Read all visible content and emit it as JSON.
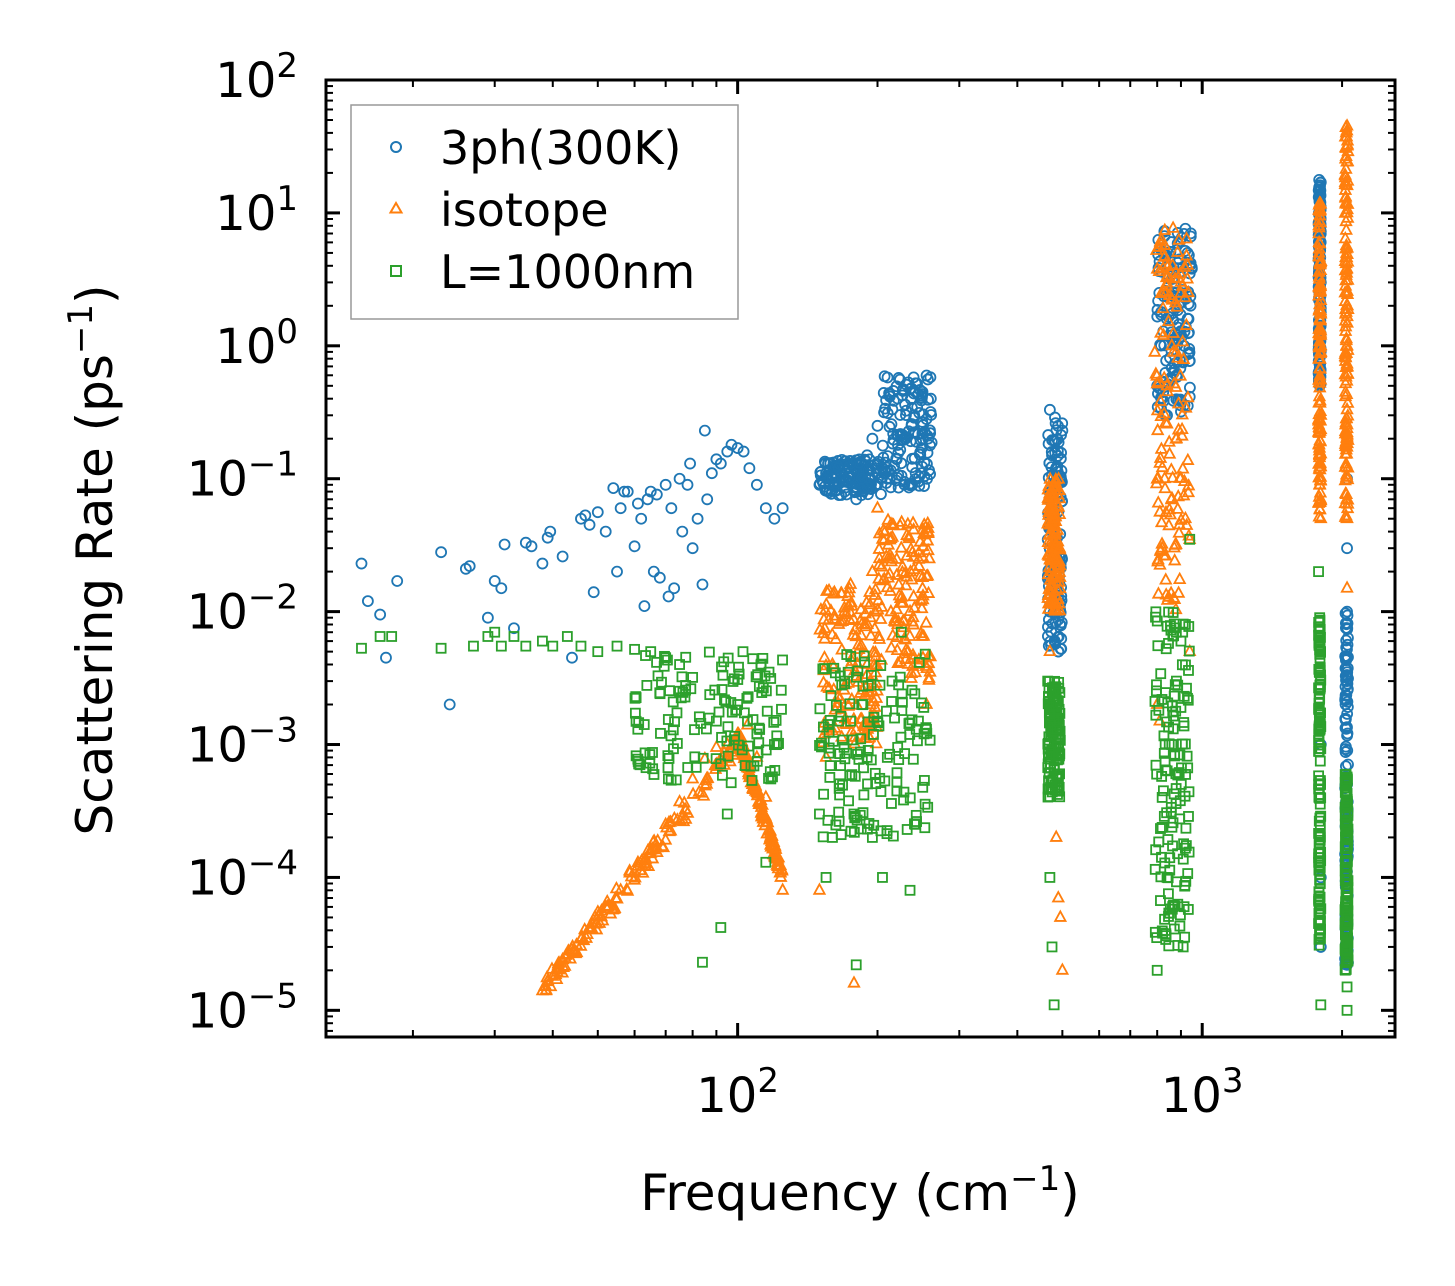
{
  "chart_data": {
    "type": "scatter",
    "xscale": "log",
    "yscale": "log",
    "xlabel": "Frequency (cm",
    "xlabel_sup": "−1",
    "xlabel_end": ")",
    "ylabel": "Scattering Rate (ps",
    "ylabel_sup": "−1",
    "ylabel_end": ")",
    "xlim": [
      13,
      2600
    ],
    "ylim": [
      6.3e-06,
      100
    ],
    "x_ticks": [
      {
        "value": 100,
        "base": "10",
        "exp": "2"
      },
      {
        "value": 1000,
        "base": "10",
        "exp": "3"
      }
    ],
    "y_ticks": [
      {
        "value": 1e-05,
        "base": "10",
        "exp": "−5"
      },
      {
        "value": 0.0001,
        "base": "10",
        "exp": "−4"
      },
      {
        "value": 0.001,
        "base": "10",
        "exp": "−3"
      },
      {
        "value": 0.01,
        "base": "10",
        "exp": "−2"
      },
      {
        "value": 0.1,
        "base": "10",
        "exp": "−1"
      },
      {
        "value": 1,
        "base": "10",
        "exp": "0"
      },
      {
        "value": 10,
        "base": "10",
        "exp": "1"
      },
      {
        "value": 100,
        "base": "10",
        "exp": "2"
      }
    ],
    "legend_position": "top-left",
    "series": [
      {
        "name": "3ph(300K)",
        "marker": "circle",
        "color": "#1f77b4",
        "points": [
          [
            15.5,
            0.023
          ],
          [
            16.0,
            0.012
          ],
          [
            17.0,
            0.0095
          ],
          [
            17.5,
            0.0045
          ],
          [
            18.5,
            0.017
          ],
          [
            23,
            0.028
          ],
          [
            24,
            0.002
          ],
          [
            26,
            0.021
          ],
          [
            26.5,
            0.022
          ],
          [
            29,
            0.009
          ],
          [
            30,
            0.017
          ],
          [
            31,
            0.015
          ],
          [
            31.5,
            0.032
          ],
          [
            33,
            0.0075
          ],
          [
            35,
            0.033
          ],
          [
            36,
            0.031
          ],
          [
            38,
            0.023
          ],
          [
            39,
            0.036
          ],
          [
            39.5,
            0.04
          ],
          [
            42,
            0.026
          ],
          [
            44,
            0.0045
          ],
          [
            46,
            0.05
          ],
          [
            47,
            0.053
          ],
          [
            48,
            0.045
          ],
          [
            49,
            0.014
          ],
          [
            50,
            0.056
          ],
          [
            52,
            0.04
          ],
          [
            54,
            0.085
          ],
          [
            55,
            0.02
          ],
          [
            56,
            0.06
          ],
          [
            57,
            0.08
          ],
          [
            58,
            0.08
          ],
          [
            60,
            0.031
          ],
          [
            61,
            0.065
          ],
          [
            62,
            0.05
          ],
          [
            63,
            0.011
          ],
          [
            64,
            0.07
          ],
          [
            65,
            0.08
          ],
          [
            66,
            0.02
          ],
          [
            67,
            0.076
          ],
          [
            68,
            0.018
          ],
          [
            70,
            0.09
          ],
          [
            71,
            0.013
          ],
          [
            72,
            0.06
          ],
          [
            73,
            0.015
          ],
          [
            75,
            0.1
          ],
          [
            76,
            0.04
          ],
          [
            78,
            0.09
          ],
          [
            79,
            0.13
          ],
          [
            80,
            0.03
          ],
          [
            82,
            0.05
          ],
          [
            84,
            0.016
          ],
          [
            85,
            0.23
          ],
          [
            86,
            0.07
          ],
          [
            88,
            0.11
          ],
          [
            90,
            0.14
          ],
          [
            92,
            0.13
          ],
          [
            95,
            0.16
          ],
          [
            97,
            0.18
          ],
          [
            100,
            0.17
          ],
          [
            103,
            0.16
          ],
          [
            106,
            0.12
          ],
          [
            110,
            0.09
          ],
          [
            115,
            0.06
          ],
          [
            120,
            0.05
          ],
          [
            125,
            0.06
          ],
          [
            150,
            0.09
          ],
          [
            155,
            0.11
          ],
          [
            160,
            0.1
          ],
          [
            165,
            0.12
          ],
          [
            170,
            0.08
          ],
          [
            175,
            0.13
          ],
          [
            180,
            0.07
          ],
          [
            185,
            0.1
          ],
          [
            190,
            0.15
          ],
          [
            195,
            0.2
          ],
          [
            200,
            0.25
          ],
          [
            205,
            0.12
          ],
          [
            210,
            0.1
          ],
          [
            220,
            0.14
          ],
          [
            230,
            0.2
          ],
          [
            240,
            0.3
          ],
          [
            250,
            0.45
          ],
          [
            260,
            0.58
          ],
          [
            470,
            0.33
          ],
          [
            470,
            0.01
          ],
          [
            475,
            0.15
          ],
          [
            480,
            0.05
          ],
          [
            485,
            0.02
          ],
          [
            490,
            0.005
          ],
          [
            495,
            0.1
          ],
          [
            500,
            0.23
          ],
          [
            800,
            0.5
          ],
          [
            820,
            0.4
          ],
          [
            840,
            0.3
          ],
          [
            860,
            1.2
          ],
          [
            880,
            0.6
          ],
          [
            900,
            2.5
          ],
          [
            920,
            7.6
          ],
          [
            930,
            5.0
          ],
          [
            940,
            3.5
          ],
          [
            950,
            3.8
          ],
          [
            1800,
            17
          ],
          [
            1800,
            3.0
          ],
          [
            1800,
            0.001
          ],
          [
            1800,
            0.0001
          ],
          [
            1800,
            3e-05
          ],
          [
            2050,
            0.1
          ],
          [
            2050,
            0.03
          ],
          [
            2050,
            0.01
          ],
          [
            2050,
            0.003
          ],
          [
            2050,
            0.0005
          ],
          [
            2050,
            0.0001
          ],
          [
            2050,
            3e-05
          ],
          [
            2050,
            2.2e-05
          ]
        ],
        "stripes": [
          {
            "x_min": 150,
            "x_max": 205,
            "y_min": 0.075,
            "y_max": 0.14
          },
          {
            "x_min": 205,
            "x_max": 262,
            "y_min": 0.085,
            "y_max": 0.6
          },
          {
            "x_min": 465,
            "x_max": 500,
            "y_min": 0.005,
            "y_max": 0.3
          },
          {
            "x_min": 800,
            "x_max": 950,
            "y_min": 0.3,
            "y_max": 8.0
          },
          {
            "x_min": 1780,
            "x_max": 1800,
            "y_min": 0.5,
            "y_max": 18
          },
          {
            "x_min": 2030,
            "x_max": 2060,
            "y_min": 2.2e-05,
            "y_max": 0.01
          }
        ]
      },
      {
        "name": "isotope",
        "marker": "triangle",
        "color": "#ff7f0e",
        "points": [
          [
            38,
            1.4e-05
          ],
          [
            40,
            1.8e-05
          ],
          [
            42,
            2.4e-05
          ],
          [
            45,
            3.1e-05
          ],
          [
            48,
            4.2e-05
          ],
          [
            52,
            6e-05
          ],
          [
            56,
            8e-05
          ],
          [
            60,
            0.00011
          ],
          [
            65,
            0.00016
          ],
          [
            70,
            0.00025
          ],
          [
            75,
            0.00037
          ],
          [
            80,
            0.00055
          ],
          [
            85,
            0.00078
          ],
          [
            90,
            0.00095
          ],
          [
            95,
            0.001
          ],
          [
            100,
            0.0012
          ],
          [
            105,
            0.0014
          ],
          [
            110,
            0.0008
          ],
          [
            115,
            0.0004
          ],
          [
            120,
            0.00015
          ],
          [
            125,
            8e-05
          ],
          [
            150,
            8e-05
          ],
          [
            155,
            0.0008
          ],
          [
            160,
            0.004
          ],
          [
            165,
            0.008
          ],
          [
            170,
            0.01
          ],
          [
            175,
            0.016
          ],
          [
            178,
            1.6e-05
          ],
          [
            185,
            0.008
          ],
          [
            190,
            0.004
          ],
          [
            195,
            0.02
          ],
          [
            200,
            0.06
          ],
          [
            205,
            0.035
          ],
          [
            215,
            0.025
          ],
          [
            225,
            0.03
          ],
          [
            235,
            0.01
          ],
          [
            245,
            0.004
          ],
          [
            255,
            0.002
          ],
          [
            470,
            0.005
          ],
          [
            475,
            0.02
          ],
          [
            480,
            0.05
          ],
          [
            485,
            0.0002
          ],
          [
            490,
            7e-05
          ],
          [
            495,
            5e-05
          ],
          [
            500,
            2e-05
          ],
          [
            800,
            0.002
          ],
          [
            810,
            0.0015
          ],
          [
            820,
            0.03
          ],
          [
            830,
            0.1
          ],
          [
            840,
            0.5
          ],
          [
            860,
            1.0
          ],
          [
            880,
            0.2
          ],
          [
            900,
            3.0
          ],
          [
            920,
            0.05
          ],
          [
            940,
            0.005
          ],
          [
            1800,
            0.05
          ],
          [
            1800,
            0.3
          ],
          [
            1800,
            1.0
          ],
          [
            2050,
            45
          ],
          [
            2050,
            10
          ],
          [
            2050,
            1.0
          ],
          [
            2050,
            0.2
          ],
          [
            2050,
            0.05
          ],
          [
            2050,
            0.015
          ]
        ],
        "stripes": [
          {
            "x_min": 38,
            "x_max": 100,
            "y_min": 1.4e-05,
            "y_max": 0.001,
            "curve": "rising"
          },
          {
            "x_min": 100,
            "x_max": 125,
            "y_min": 0.0001,
            "y_max": 0.0012,
            "curve": "falling"
          },
          {
            "x_min": 150,
            "x_max": 200,
            "y_min": 0.001,
            "y_max": 0.015
          },
          {
            "x_min": 200,
            "x_max": 260,
            "y_min": 0.003,
            "y_max": 0.05
          },
          {
            "x_min": 465,
            "x_max": 495,
            "y_min": 0.01,
            "y_max": 0.1
          },
          {
            "x_min": 790,
            "x_max": 940,
            "y_min": 0.01,
            "y_max": 8.0
          },
          {
            "x_min": 1780,
            "x_max": 1800,
            "y_min": 0.05,
            "y_max": 12
          },
          {
            "x_min": 2030,
            "x_max": 2060,
            "y_min": 0.05,
            "y_max": 45
          }
        ]
      },
      {
        "name": "L=1000nm",
        "marker": "square",
        "color": "#2ca02c",
        "points": [
          [
            15.5,
            0.0053
          ],
          [
            17,
            0.0065
          ],
          [
            18,
            0.0065
          ],
          [
            23,
            0.0053
          ],
          [
            27,
            0.0055
          ],
          [
            29,
            0.0065
          ],
          [
            30,
            0.007
          ],
          [
            31,
            0.0055
          ],
          [
            33,
            0.0065
          ],
          [
            35,
            0.0055
          ],
          [
            38,
            0.006
          ],
          [
            40,
            0.0055
          ],
          [
            43,
            0.0065
          ],
          [
            46,
            0.0055
          ],
          [
            50,
            0.005
          ],
          [
            55,
            0.0055
          ],
          [
            60,
            0.0052
          ],
          [
            65,
            0.005
          ],
          [
            70,
            0.0045
          ],
          [
            75,
            0.004
          ],
          [
            80,
            0.0032
          ],
          [
            84,
            2.3e-05
          ],
          [
            90,
            0.0015
          ],
          [
            92,
            4.2e-05
          ],
          [
            95,
            0.0003
          ],
          [
            100,
            0.002
          ],
          [
            105,
            0.0015
          ],
          [
            110,
            0.0012
          ],
          [
            115,
            0.00013
          ],
          [
            120,
            0.001
          ],
          [
            150,
            0.0003
          ],
          [
            155,
            0.0001
          ],
          [
            160,
            0.0002
          ],
          [
            165,
            0.0015
          ],
          [
            170,
            0.003
          ],
          [
            175,
            0.0015
          ],
          [
            178,
            0.0003
          ],
          [
            180,
            2.2e-05
          ],
          [
            185,
            0.002
          ],
          [
            190,
            0.0008
          ],
          [
            195,
            0.0002
          ],
          [
            200,
            0.0015
          ],
          [
            205,
            0.0001
          ],
          [
            210,
            0.0008
          ],
          [
            215,
            0.003
          ],
          [
            225,
            0.007
          ],
          [
            235,
            8e-05
          ],
          [
            245,
            0.0015
          ],
          [
            255,
            0.0013
          ],
          [
            465,
            0.003
          ],
          [
            470,
            0.0001
          ],
          [
            475,
            3e-05
          ],
          [
            480,
            1.1e-05
          ],
          [
            490,
            0.0006
          ],
          [
            800,
            2e-05
          ],
          [
            820,
            0.0004
          ],
          [
            840,
            0.0001
          ],
          [
            860,
            0.001
          ],
          [
            880,
            0.003
          ],
          [
            900,
            0.006
          ],
          [
            910,
            3e-05
          ],
          [
            920,
            0.008
          ],
          [
            940,
            0.035
          ],
          [
            1780,
            0.02
          ],
          [
            1790,
            0.009
          ],
          [
            1800,
            1.1e-05
          ],
          [
            2050,
            1.5e-05
          ],
          [
            2050,
            1e-05
          ]
        ],
        "stripes": [
          {
            "x_min": 60,
            "x_max": 125,
            "y_min": 0.0005,
            "y_max": 0.005
          },
          {
            "x_min": 150,
            "x_max": 260,
            "y_min": 0.0002,
            "y_max": 0.005
          },
          {
            "x_min": 465,
            "x_max": 495,
            "y_min": 0.0004,
            "y_max": 0.003
          },
          {
            "x_min": 790,
            "x_max": 940,
            "y_min": 3e-05,
            "y_max": 0.01
          },
          {
            "x_min": 1780,
            "x_max": 1800,
            "y_min": 3e-05,
            "y_max": 0.009
          },
          {
            "x_min": 2030,
            "x_max": 2060,
            "y_min": 2e-05,
            "y_max": 0.0006
          }
        ]
      }
    ]
  }
}
